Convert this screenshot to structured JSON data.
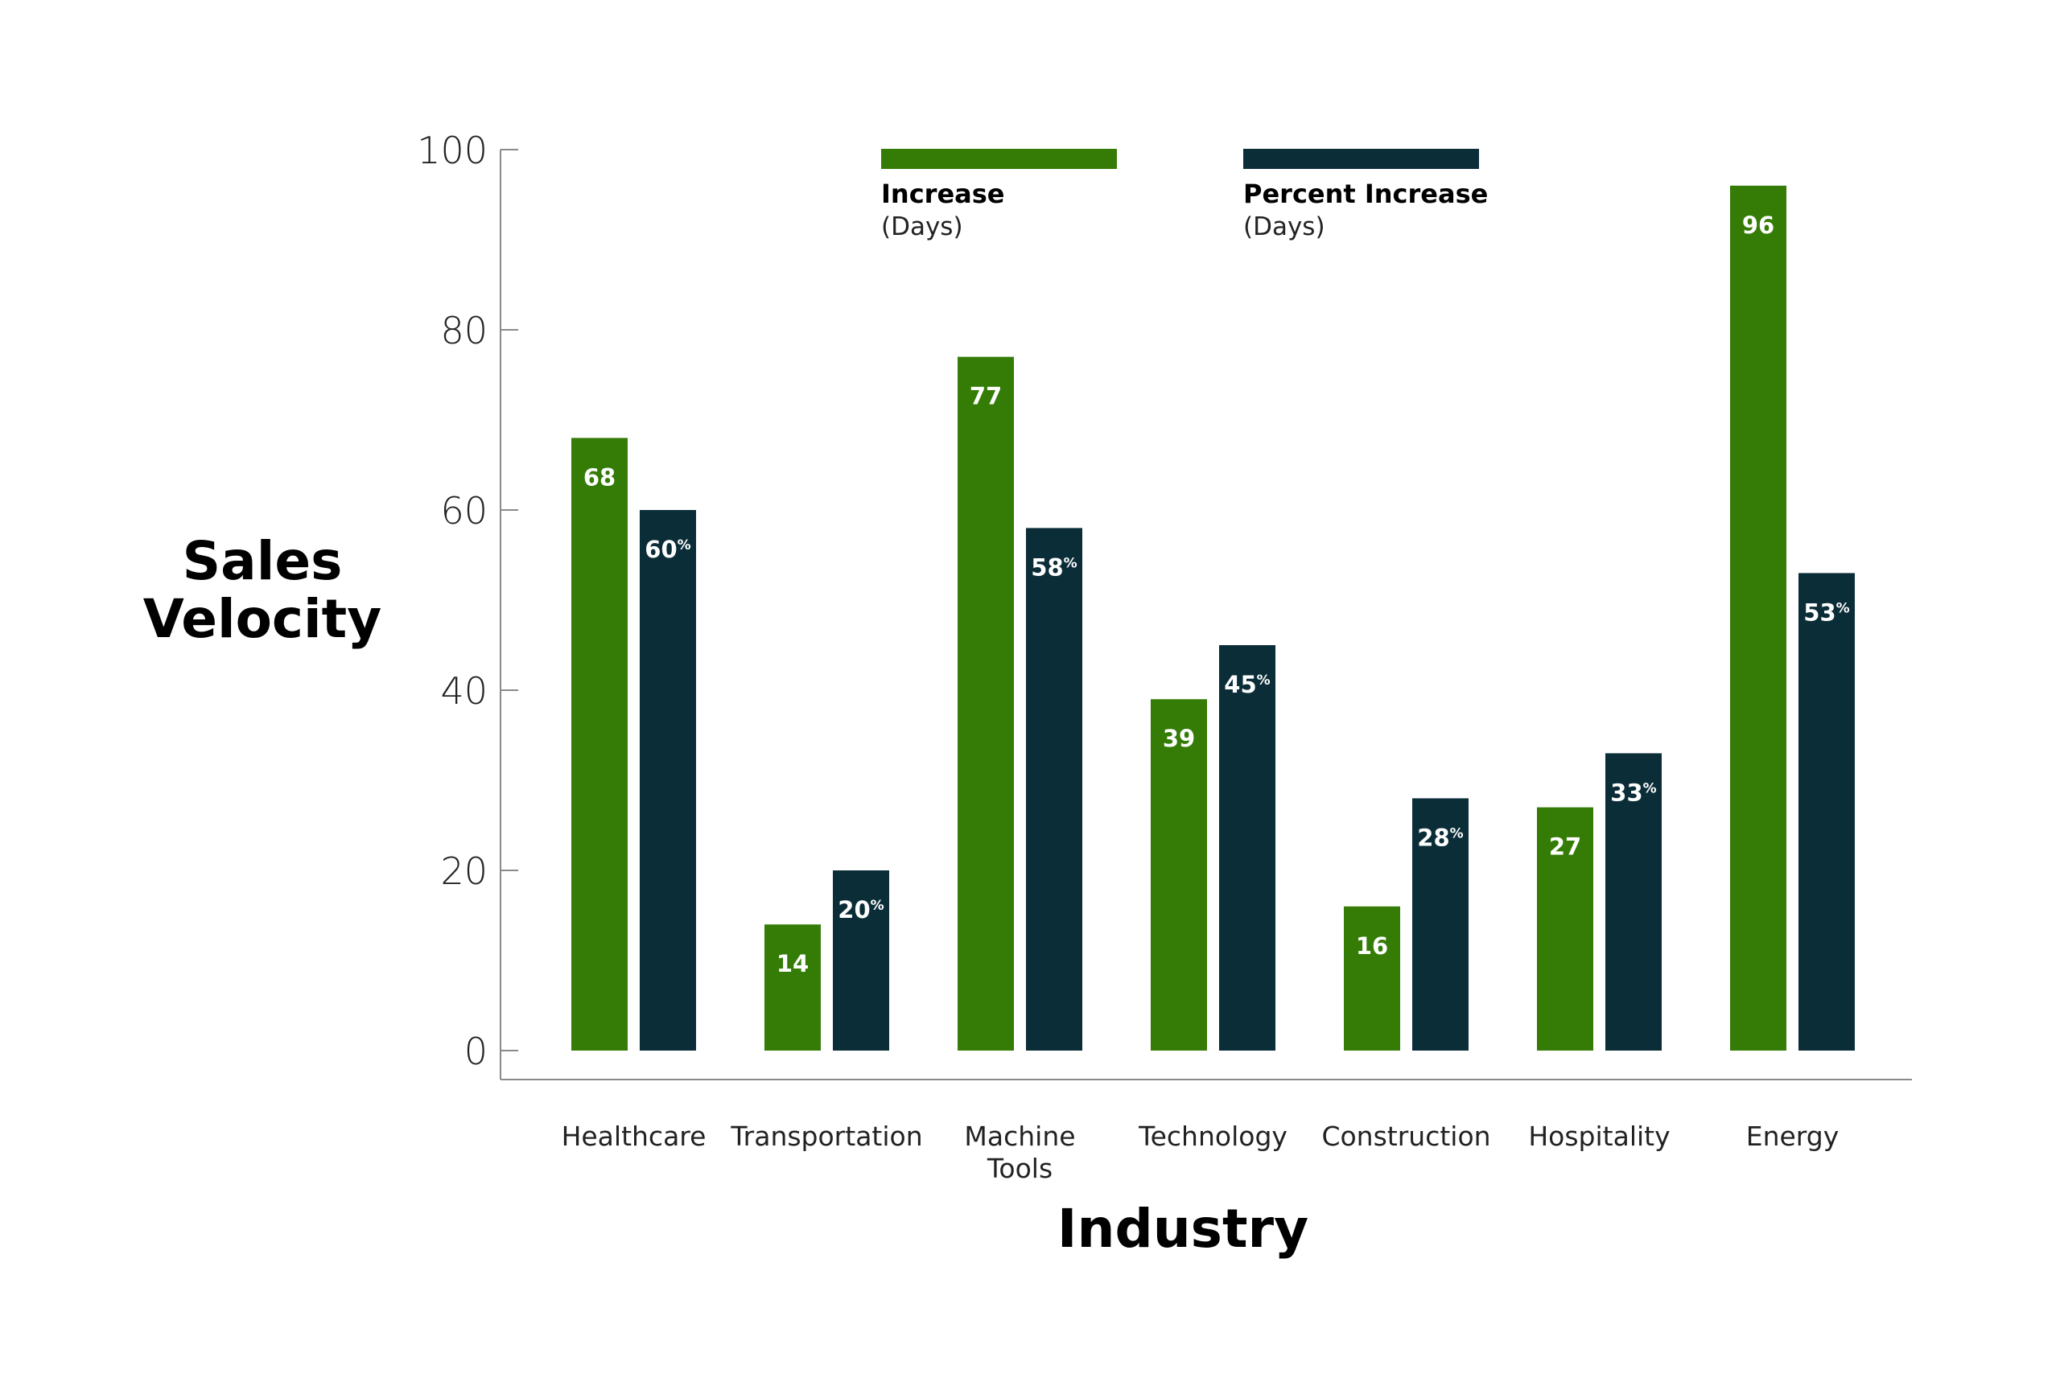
{
  "chart_data": {
    "type": "bar",
    "title": "",
    "xlabel": "Industry",
    "ylabel_lines": [
      "Sales",
      "Velocity"
    ],
    "ylim": [
      0,
      100
    ],
    "yticks": [
      0,
      20,
      40,
      60,
      80,
      100
    ],
    "grid": false,
    "legend_position": "top",
    "categories": [
      [
        "Healthcare"
      ],
      [
        "Transportation"
      ],
      [
        "Machine",
        "Tools"
      ],
      [
        "Technology"
      ],
      [
        "Construction"
      ],
      [
        "Hospitality"
      ],
      [
        "Energy"
      ]
    ],
    "series": [
      {
        "name": "Increase",
        "unit": "(Days)",
        "color": "#347C06",
        "values": [
          68,
          14,
          77,
          39,
          16,
          27,
          96
        ],
        "label_suffix": ""
      },
      {
        "name": "Percent Increase",
        "unit": "(Days)",
        "color": "#0B2D38",
        "values": [
          60,
          20,
          58,
          45,
          28,
          33,
          53
        ],
        "label_suffix": "%"
      }
    ]
  }
}
